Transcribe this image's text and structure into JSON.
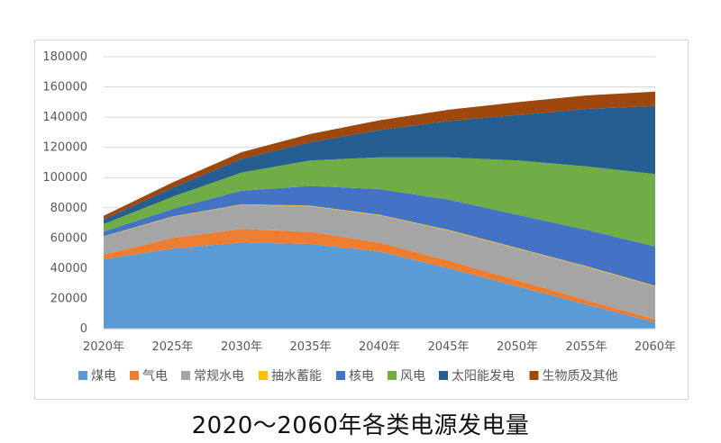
{
  "caption": "2020～2060年各类电源发电量",
  "chart_data": {
    "type": "area",
    "stacked": true,
    "x": [
      "2020年",
      "2025年",
      "2030年",
      "2035年",
      "2040年",
      "2045年",
      "2050年",
      "2055年",
      "2060年"
    ],
    "ylim": [
      0,
      180000
    ],
    "yticks": [
      "0",
      "20000",
      "40000",
      "60000",
      "80000",
      "100000",
      "120000",
      "140000",
      "160000",
      "180000"
    ],
    "grid": true,
    "legend_position": "bottom",
    "series": [
      {
        "name": "煤电",
        "color": "#5b9bd5",
        "values": [
          46000,
          53000,
          57000,
          56000,
          51000,
          40000,
          28000,
          16000,
          4000
        ]
      },
      {
        "name": "气电",
        "color": "#ed7d31",
        "values": [
          3000,
          7000,
          9000,
          8000,
          6000,
          5000,
          4000,
          3000,
          2000
        ]
      },
      {
        "name": "常规水电",
        "color": "#a5a5a5",
        "values": [
          12000,
          14000,
          16000,
          17000,
          18000,
          20000,
          21000,
          22000,
          22000
        ]
      },
      {
        "name": "抽水蓄能",
        "color": "#ffc000",
        "values": [
          200,
          300,
          300,
          400,
          400,
          400,
          400,
          400,
          400
        ]
      },
      {
        "name": "核电",
        "color": "#4472c4",
        "values": [
          3000,
          5000,
          9000,
          13000,
          17000,
          20000,
          22000,
          24000,
          26000
        ]
      },
      {
        "name": "风电",
        "color": "#70ad47",
        "values": [
          5000,
          8000,
          12000,
          17000,
          21000,
          28000,
          36000,
          42000,
          48000
        ]
      },
      {
        "name": "太阳能发电",
        "color": "#255e91",
        "values": [
          3000,
          6000,
          9000,
          12000,
          18000,
          24000,
          30000,
          38000,
          45000
        ]
      },
      {
        "name": "生物质及其他",
        "color": "#9e480e",
        "values": [
          2500,
          3500,
          4500,
          5500,
          6500,
          7500,
          8500,
          9000,
          9500
        ]
      }
    ]
  }
}
